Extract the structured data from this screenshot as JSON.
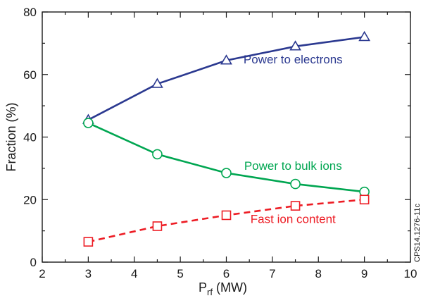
{
  "chart_data": {
    "type": "line",
    "x_title_main": "P",
    "x_title_sub": "rf",
    "x_title_unit": " (MW)",
    "ylabel": "Fraction (%)",
    "xlim": [
      2,
      10
    ],
    "ylim": [
      0,
      80
    ],
    "x_ticks": [
      2,
      3,
      4,
      5,
      6,
      7,
      8,
      9,
      10
    ],
    "y_ticks": [
      0,
      20,
      40,
      60,
      80
    ],
    "grid": false,
    "side_note": "CPS14.1276-11c",
    "series": [
      {
        "name": "Power to electrons",
        "color": "#2b3990",
        "marker": "triangle",
        "dash": "solid",
        "x": [
          3,
          4.5,
          6,
          7.5,
          9
        ],
        "y": [
          45.5,
          57,
          64.5,
          69,
          72
        ]
      },
      {
        "name": "Power to bulk ions",
        "color": "#00a651",
        "marker": "circle",
        "dash": "solid",
        "x": [
          3,
          4.5,
          6,
          7.5,
          9
        ],
        "y": [
          44.5,
          34.5,
          28.5,
          25,
          22.5
        ]
      },
      {
        "name": "Fast ion content",
        "color": "#ed1c24",
        "marker": "square",
        "dash": "dashed",
        "x": [
          3,
          4.5,
          6,
          7.5,
          9
        ],
        "y": [
          6.5,
          11.5,
          15,
          18,
          20
        ]
      }
    ]
  }
}
